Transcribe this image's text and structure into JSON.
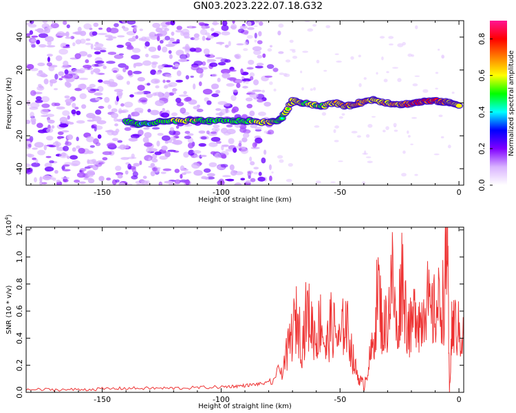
{
  "title": "GN03.2023.222.07.18.G32",
  "chart_data": [
    {
      "type": "heatmap",
      "xlabel": "Height of straight line (km)",
      "ylabel": "Frequency (Hz)",
      "xlim": [
        -182,
        2
      ],
      "ylim": [
        -50,
        50
      ],
      "x_ticks": [
        -150,
        -100,
        -50,
        0
      ],
      "x_tick_labels": [
        "-150",
        "-100",
        "-50",
        "0"
      ],
      "y_ticks": [
        -40,
        -20,
        0,
        20,
        40
      ],
      "y_tick_labels": [
        "-40",
        "-20",
        "0",
        "20",
        "40"
      ],
      "colorbar": {
        "label": "Normalized spectral amplitude",
        "range": [
          0,
          0.9
        ],
        "ticks": [
          0.0,
          0.2,
          0.4,
          0.6,
          0.8
        ],
        "tick_labels": [
          "0.0",
          "0.2",
          "0.4",
          "0.6",
          "0.8"
        ],
        "colors": [
          "#ffffff",
          "#d9b3ff",
          "#8000ff",
          "#0000ff",
          "#00ffff",
          "#00ff00",
          "#ffff00",
          "#ff8000",
          "#ff0000",
          "#ff1493"
        ]
      },
      "noise_region_x": [
        -182,
        -88
      ],
      "ridge": [
        {
          "x": -140,
          "y": -11,
          "amp": 0.35
        },
        {
          "x": -135,
          "y": -13,
          "amp": 0.3
        },
        {
          "x": -128,
          "y": -12,
          "amp": 0.3
        },
        {
          "x": -120,
          "y": -11,
          "amp": 0.45
        },
        {
          "x": -112,
          "y": -11,
          "amp": 0.5
        },
        {
          "x": -105,
          "y": -11,
          "amp": 0.3
        },
        {
          "x": -95,
          "y": -11,
          "amp": 0.4
        },
        {
          "x": -88,
          "y": -11,
          "amp": 0.45
        },
        {
          "x": -80,
          "y": -12,
          "amp": 0.55
        },
        {
          "x": -75,
          "y": -10,
          "amp": 0.4
        },
        {
          "x": -70,
          "y": 1,
          "amp": 0.6
        },
        {
          "x": -65,
          "y": 0,
          "amp": 0.5
        },
        {
          "x": -58,
          "y": -2,
          "amp": 0.5
        },
        {
          "x": -52,
          "y": 0,
          "amp": 0.6
        },
        {
          "x": -47,
          "y": -2,
          "amp": 0.65
        },
        {
          "x": -42,
          "y": 0,
          "amp": 0.7
        },
        {
          "x": -36,
          "y": 2,
          "amp": 0.55
        },
        {
          "x": -30,
          "y": 0,
          "amp": 0.6
        },
        {
          "x": -24,
          "y": -1,
          "amp": 0.7
        },
        {
          "x": -19,
          "y": 0,
          "amp": 0.85
        },
        {
          "x": -14,
          "y": 1,
          "amp": 0.9
        },
        {
          "x": -8,
          "y": 1,
          "amp": 0.85
        },
        {
          "x": -4,
          "y": 0,
          "amp": 0.6
        },
        {
          "x": 0,
          "y": -1,
          "amp": 0.55
        }
      ]
    },
    {
      "type": "line",
      "xlabel": "Height of straight line (km)",
      "ylabel": "SNR (10 * v/v)",
      "y_multiplier": "(x10",
      "y_multiplier_exp": "4",
      "xlim": [
        -182,
        2
      ],
      "ylim": [
        0,
        1.22
      ],
      "x_ticks": [
        -150,
        -100,
        -50,
        0
      ],
      "x_tick_labels": [
        "-150",
        "-100",
        "-50",
        "0"
      ],
      "y_ticks": [
        0.0,
        0.2,
        0.4,
        0.6,
        0.8,
        1.0,
        1.2
      ],
      "y_tick_labels": [
        "0.0",
        "0.2",
        "0.4",
        "0.6",
        "0.8",
        "1.0",
        "1.2"
      ],
      "color": "#ee3333",
      "x": [
        -182,
        -160,
        -140,
        -120,
        -100,
        -90,
        -80,
        -75,
        -72,
        -70,
        -68,
        -66,
        -64,
        -62,
        -60,
        -58,
        -56,
        -54,
        -52,
        -50,
        -48,
        -46,
        -44,
        -42,
        -40,
        -38,
        -36,
        -34,
        -32,
        -30,
        -28,
        -26,
        -24,
        -22,
        -20,
        -18,
        -16,
        -14,
        -12,
        -10,
        -8,
        -6,
        -5,
        -4,
        -3,
        -2,
        0,
        2
      ],
      "y": [
        0.02,
        0.02,
        0.03,
        0.03,
        0.04,
        0.05,
        0.07,
        0.15,
        0.3,
        0.45,
        0.55,
        0.35,
        0.6,
        0.5,
        0.4,
        0.55,
        0.3,
        0.5,
        0.45,
        0.35,
        0.55,
        0.4,
        0.2,
        0.1,
        0.05,
        0.2,
        0.35,
        0.8,
        0.45,
        0.55,
        0.85,
        0.4,
        0.9,
        0.55,
        0.45,
        0.65,
        0.5,
        0.75,
        0.55,
        0.6,
        0.65,
        0.7,
        1.22,
        0.0,
        0.45,
        0.5,
        0.45,
        0.4
      ]
    }
  ]
}
